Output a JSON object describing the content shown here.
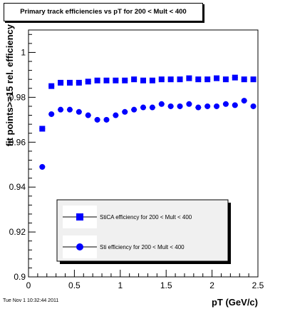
{
  "header": {
    "title": "Primary track efficiencies vs pT for 200 < Mult < 400"
  },
  "footer": {
    "timestamp": "Tue Nov  1 10:32:44 2011"
  },
  "chart_data": {
    "type": "scatter",
    "title": "Primary track efficiencies vs pT for 200 < Mult < 400",
    "xlabel": "pT (GeV/c)",
    "ylabel": "fit points>=15 rel. efficiency",
    "xlim": [
      0,
      2.5
    ],
    "ylim": [
      0.9,
      1.01
    ],
    "xticks": [
      "0",
      "0.5",
      "1",
      "1.5",
      "2",
      "2.5"
    ],
    "yticks": [
      "0.9",
      "0.92",
      "0.94",
      "0.96",
      "0.98",
      "1"
    ],
    "legend_position": "bottom-center",
    "series": [
      {
        "name": "StiCA efficiency  for 200 < Mult < 400",
        "marker": "square",
        "color": "#0000ff",
        "x": [
          0.15,
          0.25,
          0.35,
          0.45,
          0.55,
          0.65,
          0.75,
          0.85,
          0.95,
          1.05,
          1.15,
          1.25,
          1.35,
          1.45,
          1.55,
          1.65,
          1.75,
          1.85,
          1.95,
          2.05,
          2.15,
          2.25,
          2.35,
          2.45
        ],
        "y": [
          0.966,
          0.985,
          0.9865,
          0.9865,
          0.9865,
          0.987,
          0.9875,
          0.9875,
          0.9875,
          0.9875,
          0.988,
          0.9875,
          0.9875,
          0.988,
          0.988,
          0.988,
          0.9885,
          0.988,
          0.988,
          0.9885,
          0.988,
          0.9888,
          0.988,
          0.988
        ]
      },
      {
        "name": "Sti efficiency  for 200 < Mult < 400",
        "marker": "circle",
        "color": "#0000ff",
        "x": [
          0.15,
          0.25,
          0.35,
          0.45,
          0.55,
          0.65,
          0.75,
          0.85,
          0.95,
          1.05,
          1.15,
          1.25,
          1.35,
          1.45,
          1.55,
          1.65,
          1.75,
          1.85,
          1.95,
          2.05,
          2.15,
          2.25,
          2.35,
          2.45
        ],
        "y": [
          0.949,
          0.9725,
          0.9745,
          0.9745,
          0.9735,
          0.972,
          0.97,
          0.97,
          0.972,
          0.9735,
          0.9745,
          0.9755,
          0.9755,
          0.977,
          0.976,
          0.976,
          0.977,
          0.9755,
          0.976,
          0.976,
          0.977,
          0.9765,
          0.9785,
          0.976
        ]
      }
    ]
  }
}
